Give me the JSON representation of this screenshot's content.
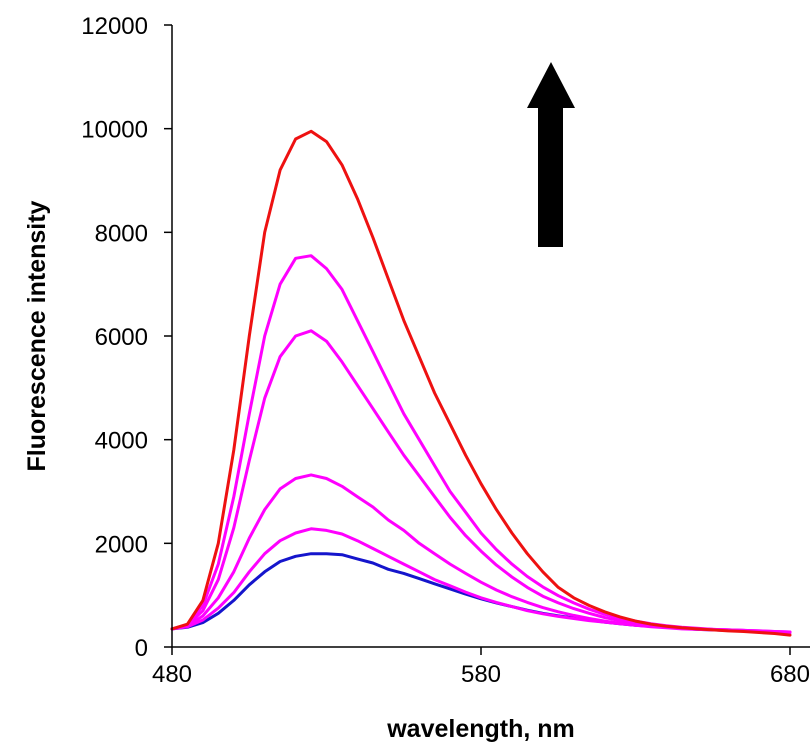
{
  "chart_data": {
    "type": "line",
    "title": "",
    "xlabel": "wavelength, nm",
    "ylabel": "Fluorescence intensity",
    "xlim": [
      480,
      680
    ],
    "ylim": [
      0,
      12000
    ],
    "x_ticks": [
      480,
      580,
      680
    ],
    "y_ticks": [
      0,
      2000,
      4000,
      6000,
      8000,
      10000,
      12000
    ],
    "grid": false,
    "legend": "none",
    "annotations": [
      {
        "type": "arrow",
        "direction": "up",
        "color": "#000000"
      }
    ],
    "x": [
      480,
      485,
      490,
      495,
      500,
      505,
      510,
      515,
      520,
      525,
      530,
      535,
      540,
      545,
      550,
      555,
      560,
      565,
      570,
      575,
      580,
      585,
      590,
      595,
      600,
      605,
      610,
      615,
      620,
      625,
      630,
      635,
      640,
      645,
      650,
      655,
      660,
      665,
      670,
      675,
      680
    ],
    "series": [
      {
        "color": "#1515cc",
        "values": [
          350,
          380,
          470,
          650,
          900,
          1200,
          1450,
          1650,
          1750,
          1800,
          1800,
          1780,
          1700,
          1620,
          1500,
          1420,
          1320,
          1220,
          1120,
          1020,
          930,
          850,
          780,
          710,
          650,
          600,
          560,
          520,
          480,
          450,
          420,
          400,
          380,
          360,
          340,
          330,
          320,
          310,
          300,
          290,
          280
        ]
      },
      {
        "color": "#ff00ff",
        "values": [
          350,
          390,
          520,
          750,
          1050,
          1450,
          1800,
          2050,
          2200,
          2280,
          2250,
          2180,
          2050,
          1900,
          1750,
          1600,
          1450,
          1300,
          1180,
          1060,
          950,
          860,
          780,
          700,
          640,
          590,
          550,
          510,
          480,
          450,
          420,
          400,
          380,
          360,
          350,
          340,
          330,
          320,
          310,
          300,
          290
        ]
      },
      {
        "color": "#ff00ff",
        "values": [
          350,
          400,
          600,
          950,
          1450,
          2100,
          2650,
          3050,
          3250,
          3320,
          3250,
          3100,
          2900,
          2700,
          2450,
          2250,
          2000,
          1800,
          1600,
          1420,
          1250,
          1100,
          970,
          860,
          760,
          680,
          610,
          550,
          500,
          460,
          420,
          390,
          370,
          350,
          340,
          330,
          320,
          310,
          300,
          290,
          280
        ]
      },
      {
        "color": "#ff00ff",
        "values": [
          350,
          420,
          700,
          1300,
          2300,
          3600,
          4800,
          5600,
          6000,
          6100,
          5900,
          5500,
          5050,
          4600,
          4150,
          3700,
          3300,
          2900,
          2500,
          2150,
          1850,
          1580,
          1350,
          1150,
          980,
          850,
          740,
          650,
          570,
          510,
          460,
          420,
          390,
          370,
          350,
          340,
          330,
          320,
          310,
          300,
          290
        ]
      },
      {
        "color": "#ff00ff",
        "values": [
          350,
          430,
          800,
          1600,
          2900,
          4500,
          6000,
          7000,
          7500,
          7550,
          7300,
          6900,
          6300,
          5700,
          5100,
          4500,
          4000,
          3500,
          3000,
          2600,
          2200,
          1880,
          1600,
          1360,
          1160,
          990,
          850,
          730,
          630,
          560,
          500,
          450,
          410,
          380,
          360,
          340,
          330,
          320,
          300,
          290,
          280
        ]
      },
      {
        "color": "#ee1111",
        "values": [
          350,
          440,
          900,
          2000,
          3800,
          6000,
          8000,
          9200,
          9800,
          9950,
          9750,
          9300,
          8650,
          7900,
          7100,
          6300,
          5600,
          4900,
          4300,
          3700,
          3150,
          2650,
          2200,
          1800,
          1450,
          1150,
          950,
          800,
          680,
          580,
          500,
          440,
          400,
          370,
          350,
          330,
          310,
          300,
          280,
          260,
          230
        ]
      }
    ]
  }
}
